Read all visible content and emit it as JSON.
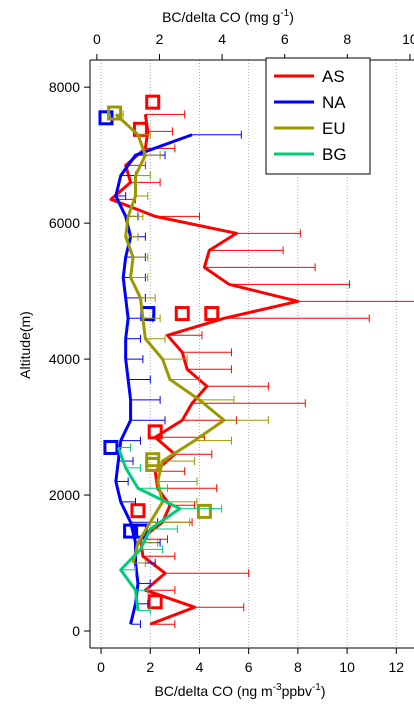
{
  "chart_data": {
    "type": "line",
    "orientation": "vertical-profile",
    "ylabel": "Altitude(m)",
    "xlabel": [
      "BC/delta CO (ng m",
      "-3",
      "ppbv",
      "-1",
      ")"
    ],
    "x2label": [
      "BC/delta CO (mg g",
      "-1",
      ")"
    ],
    "xlim": [
      -0.45,
      12.72
    ],
    "xticks": [
      0,
      2,
      4,
      6,
      8,
      10,
      12
    ],
    "x2lim": [
      -0.22,
      10.13
    ],
    "x2ticks": [
      0,
      2,
      4,
      6,
      8,
      10
    ],
    "ylim": [
      -250,
      8400
    ],
    "yticks": [
      0,
      2000,
      4000,
      6000,
      8000
    ],
    "grid": true,
    "legend": "top-right",
    "series": [
      {
        "name": "AS",
        "color": "#ff0000",
        "altitude": [
          100,
          350,
          600,
          850,
          1100,
          1350,
          1600,
          1850,
          2100,
          2350,
          2600,
          2850,
          3100,
          3350,
          3600,
          3850,
          4100,
          4350,
          4600,
          4850,
          5100,
          5350,
          5600,
          5850,
          6100,
          6350,
          6600,
          6850,
          7100,
          7350,
          7600
        ],
        "values": [
          2.0,
          3.8,
          1.8,
          2.6,
          1.7,
          1.6,
          2.5,
          2.8,
          2.3,
          2.2,
          3.0,
          2.2,
          3.3,
          3.7,
          4.3,
          3.5,
          3.3,
          2.7,
          5.0,
          8.0,
          5.2,
          4.2,
          4.4,
          5.5,
          2.2,
          0.4,
          1.2,
          1.0,
          1.8,
          1.9,
          1.8
        ],
        "errors": [
          1.0,
          2.0,
          1.2,
          3.4,
          1.3,
          1.1,
          1.2,
          1.0,
          2.4,
          1.2,
          1.5,
          2.0,
          2.2,
          4.6,
          2.5,
          1.8,
          2.0,
          1.4,
          5.9,
          4.8,
          4.9,
          4.5,
          3.0,
          2.6,
          1.8,
          1.0,
          1.2,
          0.8,
          1.2,
          1.0,
          1.6
        ],
        "markers": {
          "values": [
            2.2,
            1.5,
            2.2,
            3.3,
            4.5,
            1.6,
            2.1
          ],
          "altitude": [
            430,
            1770,
            2930,
            4670,
            4670,
            7380,
            7780
          ]
        }
      },
      {
        "name": "NA",
        "color": "#0000ff",
        "altitude": [
          100,
          400,
          700,
          1000,
          1300,
          1600,
          1900,
          2200,
          2500,
          2800,
          3100,
          3400,
          3700,
          4000,
          4300,
          4600,
          4900,
          5200,
          5500,
          5800,
          6100,
          6400,
          6700,
          7000,
          7300
        ],
        "values": [
          1.2,
          1.4,
          1.5,
          1.4,
          1.4,
          1.2,
          0.8,
          0.6,
          0.7,
          0.8,
          1.2,
          1.2,
          1.1,
          1.0,
          1.0,
          1.1,
          1.0,
          0.9,
          1.0,
          1.2,
          1.0,
          0.6,
          0.8,
          1.4,
          3.7
        ],
        "errors": [
          0.4,
          0.5,
          0.5,
          0.8,
          1.0,
          1.1,
          0.6,
          0.5,
          0.6,
          0.8,
          1.4,
          1.2,
          0.9,
          0.7,
          0.6,
          1.0,
          0.8,
          0.9,
          0.8,
          0.6,
          0.5,
          0.4,
          0.6,
          1.2,
          2.0
        ],
        "markers": {
          "values": [
            0.2,
            1.9,
            0.4,
            1.2,
            1.6
          ],
          "altitude": [
            7550,
            4670,
            2700,
            1470,
            1470
          ]
        }
      },
      {
        "name": "EU",
        "color": "#999900",
        "altitude": [
          1000,
          1300,
          1600,
          1900,
          2200,
          2500,
          2800,
          3100,
          3400,
          3700,
          4000,
          4300,
          4600,
          4900,
          5200,
          5500,
          5800,
          6100,
          6400,
          6700,
          7000,
          7300,
          7600
        ],
        "values": [
          1.3,
          1.5,
          2.0,
          2.5,
          2.3,
          2.5,
          3.8,
          5.0,
          4.0,
          2.8,
          2.5,
          1.8,
          1.7,
          1.6,
          1.2,
          1.3,
          1.0,
          1.1,
          1.4,
          1.4,
          1.8,
          1.5,
          0.6
        ],
        "errors": [
          0.5,
          0.8,
          1.6,
          1.4,
          1.6,
          1.3,
          1.5,
          1.8,
          1.4,
          1.2,
          1.0,
          0.8,
          0.7,
          0.6,
          0.7,
          0.6,
          0.5,
          0.6,
          0.5,
          0.6,
          0.6,
          0.5,
          0.3
        ],
        "markers": {
          "values": [
            0.55,
            2.1,
            2.1,
            4.2
          ],
          "altitude": [
            7620,
            2450,
            2520,
            1760
          ]
        }
      },
      {
        "name": "BG",
        "color": "#00cc77",
        "altitude": [
          300,
          600,
          900,
          1200,
          1500,
          1800,
          2100,
          2400,
          2700
        ],
        "values": [
          1.5,
          1.4,
          0.8,
          1.6,
          2.0,
          3.2,
          1.5,
          1.0,
          0.7
        ],
        "errors": [
          0.5,
          0.5,
          0.6,
          0.9,
          1.1,
          1.7,
          1.2,
          0.6,
          0.5
        ]
      }
    ]
  }
}
